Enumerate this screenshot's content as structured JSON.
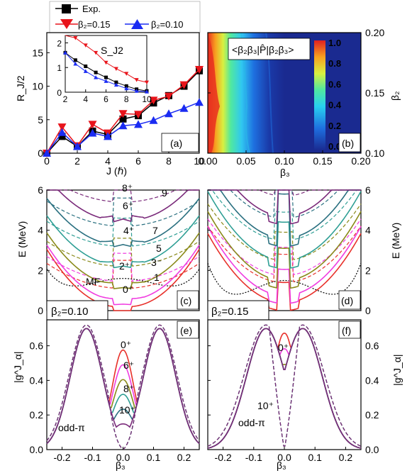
{
  "figure": {
    "legend": {
      "exp": "Exp.",
      "b015": "β₂=0.15",
      "b010": "β₂=0.10",
      "colors": {
        "exp": "#000000",
        "b015": "#e8141b",
        "b010": "#1a2bf2"
      }
    },
    "panel_tags": [
      "(a)",
      "(b)",
      "(c)",
      "(d)",
      "(e)",
      "(f)"
    ],
    "beta2_boxes": {
      "c": "β₂=0.10",
      "d": "β₂=0.15"
    },
    "label_colors": {
      "c": "#1a2bf2",
      "d": "#e8141b"
    },
    "state_colors": {
      "0": "#e8302a",
      "1": "#f58a1e",
      "2": "#f03ce0",
      "3": "#d98ad8",
      "4": "#8a8a1a",
      "5": "#b8b830",
      "6": "#2f9f95",
      "7": "#28a8a0",
      "8": "#2a7080",
      "9": "#7a2a7a",
      "10": "#7a2a7a"
    }
  },
  "chart_data": [
    {
      "panel": "a",
      "type": "line",
      "xlabel": "J (ℏ)",
      "ylabel": "R_J/2",
      "xlim": [
        0,
        10
      ],
      "ylim": [
        0,
        18
      ],
      "xticks": [
        "0",
        "2",
        "4",
        "6",
        "8",
        "10"
      ],
      "yticks": [
        "0",
        "5",
        "10",
        "15"
      ],
      "x": [
        0,
        1,
        2,
        3,
        4,
        5,
        6,
        7,
        8,
        9,
        10
      ],
      "series": [
        {
          "name": "Exp.",
          "values": [
            0.0,
            2.5,
            1.0,
            3.3,
            2.8,
            5.1,
            5.6,
            7.5,
            8.6,
            10.0,
            12.3
          ]
        },
        {
          "name": "β₂=0.15",
          "values": [
            0.0,
            3.9,
            1.1,
            4.3,
            3.0,
            5.9,
            5.8,
            7.9,
            8.5,
            10.2,
            12.5
          ]
        },
        {
          "name": "β₂=0.10",
          "values": [
            0.0,
            3.1,
            1.0,
            3.0,
            2.5,
            4.1,
            4.3,
            4.9,
            5.9,
            6.7,
            7.6
          ]
        }
      ]
    },
    {
      "panel": "a-inset",
      "type": "line",
      "title": "S_J2",
      "xlim": [
        2,
        10
      ],
      "ylim": [
        0,
        2.3
      ],
      "xticks": [
        "2",
        "4",
        "6",
        "8",
        "10"
      ],
      "yticks": [
        "0",
        "1",
        "2"
      ],
      "x": [
        2,
        3,
        4,
        5,
        6,
        7,
        8,
        9,
        10
      ],
      "series": [
        {
          "name": "Exp.",
          "values": [
            1.6,
            1.3,
            1.05,
            0.8,
            0.6,
            0.4,
            0.25,
            0.12,
            0.05
          ]
        },
        {
          "name": "β₂=0.15",
          "values": [
            2.4,
            2.2,
            1.9,
            1.6,
            1.2,
            0.95,
            0.75,
            0.5,
            0.4
          ]
        },
        {
          "name": "β₂=0.10",
          "values": [
            1.6,
            1.15,
            0.85,
            0.6,
            0.45,
            0.3,
            0.15,
            0.05,
            0.02
          ]
        }
      ]
    },
    {
      "panel": "b",
      "type": "heatmap",
      "title": "<β₂β₃|P̂|β₂β₃>",
      "xlabel": "β₃",
      "ylabel": "β₂",
      "xlim": [
        0.0,
        0.2
      ],
      "ylim": [
        0.1,
        0.2
      ],
      "xticks": [
        "0.00",
        "0.05",
        "0.10",
        "0.15",
        "0.20"
      ],
      "yticks": [
        "0.10",
        "0.15",
        "0.20"
      ],
      "colorbar_ticks": [
        "0.0",
        "0.2",
        "0.4",
        "0.6",
        "0.8",
        "1.0"
      ]
    },
    {
      "panel": "c",
      "type": "line",
      "ylabel": "E (MeV)",
      "xlim": [
        -0.25,
        0.25
      ],
      "ylim": [
        0,
        6
      ],
      "yticks": [
        "0",
        "2",
        "4",
        "6"
      ],
      "state_labels": [
        "0⁺",
        "2⁺",
        "4⁺",
        "6⁺",
        "8⁺",
        "1",
        "3⁻",
        "5",
        "7",
        "9",
        "MF"
      ]
    },
    {
      "panel": "d",
      "type": "line",
      "ylabel": "E (MeV)",
      "xlim": [
        -0.25,
        0.25
      ],
      "ylim": [
        0,
        6
      ],
      "yticks": [
        "0",
        "2",
        "4",
        "6"
      ]
    },
    {
      "panel": "e",
      "type": "line",
      "xlabel": "β₃",
      "ylabel": "|g^J_α|",
      "xlim": [
        -0.25,
        0.25
      ],
      "ylim": [
        0,
        0.75
      ],
      "xticks": [
        "-0.2",
        "-0.1",
        "0.0",
        "0.1",
        "0.2"
      ],
      "yticks": [
        "0.0",
        "0.2",
        "0.4",
        "0.6"
      ],
      "state_labels": [
        "0⁺",
        "6⁺",
        "8⁺",
        "10⁺",
        "odd-π"
      ]
    },
    {
      "panel": "f",
      "type": "line",
      "xlabel": "β₃",
      "ylabel": "|g^J_α|",
      "xlim": [
        -0.25,
        0.25
      ],
      "ylim": [
        0,
        0.75
      ],
      "xticks": [
        "-0.2",
        "-0.1",
        "0.0",
        "0.1",
        "0.2"
      ],
      "yticks": [
        "0.0",
        "0.2",
        "0.4",
        "0.6"
      ],
      "state_labels": [
        "0⁺",
        "10⁺",
        "odd-π"
      ]
    }
  ]
}
